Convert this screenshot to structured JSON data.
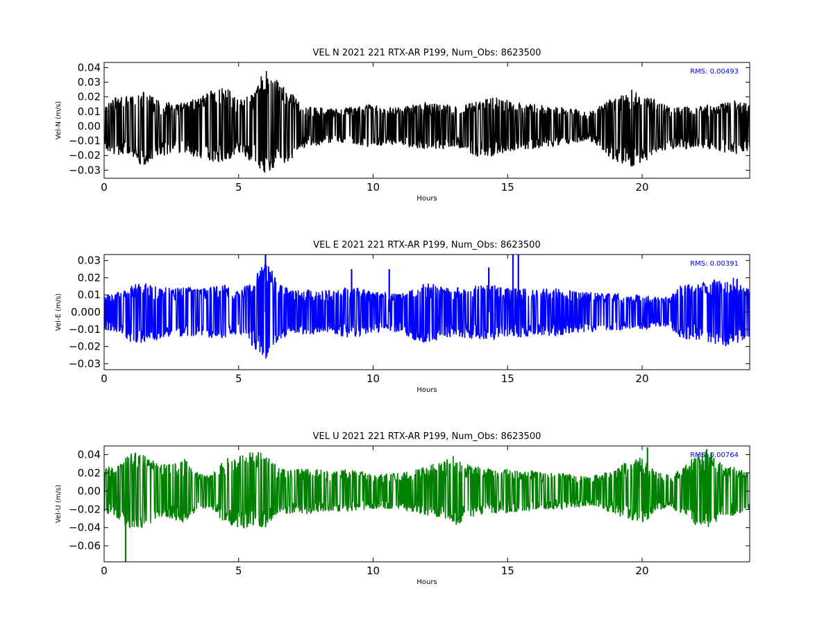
{
  "chart_data": [
    {
      "type": "line",
      "title": "VEL N 2021 221 RTX-AR  P199, Num_Obs: 8623500",
      "xlabel": "Hours",
      "ylabel": "Vel-N (m/s)",
      "xlim": [
        0,
        24
      ],
      "ylim": [
        -0.0355,
        0.0435
      ],
      "xticks": [
        0,
        5,
        10,
        15,
        20
      ],
      "xtick_labels": [
        "0",
        "5",
        "10",
        "15",
        "20"
      ],
      "yticks": [
        -0.03,
        -0.02,
        -0.01,
        0.0,
        0.01,
        0.02,
        0.03,
        0.04
      ],
      "ytick_labels": [
        "−0.03",
        "−0.02",
        "−0.01",
        "0.00",
        "0.01",
        "0.02",
        "0.03",
        "0.04"
      ],
      "color": "#000000",
      "annotation": "RMS:  0.00493",
      "annotation_color": "#0000ff",
      "series": [
        {
          "values_note_x": "hours",
          "x": [
            0,
            0.5,
            1,
            1.5,
            2,
            2.5,
            3,
            3.5,
            4,
            4.5,
            5,
            5.5,
            6,
            6.5,
            7,
            7.5,
            8,
            8.5,
            9,
            9.5,
            10,
            10.5,
            11,
            11.5,
            12,
            12.5,
            13,
            13.5,
            14,
            14.5,
            15,
            15.5,
            16,
            16.5,
            17,
            17.5,
            18,
            18.5,
            19,
            19.5,
            20,
            20.5,
            21,
            21.5,
            22,
            22.5,
            23,
            23.5,
            24
          ],
          "upper": [
            0.016,
            0.02,
            0.02,
            0.025,
            0.018,
            0.016,
            0.016,
            0.02,
            0.024,
            0.028,
            0.018,
            0.022,
            0.04,
            0.03,
            0.022,
            0.014,
            0.013,
            0.012,
            0.013,
            0.014,
            0.015,
            0.013,
            0.013,
            0.015,
            0.016,
            0.015,
            0.014,
            0.016,
            0.018,
            0.02,
            0.018,
            0.016,
            0.016,
            0.014,
            0.013,
            0.012,
            0.009,
            0.016,
            0.02,
            0.026,
            0.022,
            0.018,
            0.014,
            0.014,
            0.013,
            0.015,
            0.016,
            0.018,
            0.015
          ],
          "lower": [
            -0.016,
            -0.02,
            -0.022,
            -0.028,
            -0.022,
            -0.018,
            -0.018,
            -0.022,
            -0.024,
            -0.025,
            -0.018,
            -0.024,
            -0.034,
            -0.028,
            -0.022,
            -0.014,
            -0.013,
            -0.012,
            -0.013,
            -0.014,
            -0.015,
            -0.013,
            -0.013,
            -0.015,
            -0.016,
            -0.016,
            -0.014,
            -0.018,
            -0.022,
            -0.02,
            -0.018,
            -0.016,
            -0.016,
            -0.014,
            -0.013,
            -0.012,
            -0.009,
            -0.016,
            -0.026,
            -0.028,
            -0.026,
            -0.02,
            -0.015,
            -0.016,
            -0.014,
            -0.016,
            -0.018,
            -0.02,
            -0.016
          ]
        }
      ]
    },
    {
      "type": "line",
      "title": "VEL E 2021 221 RTX-AR  P199, Num_Obs: 8623500",
      "xlabel": "Hours",
      "ylabel": "Vel-E (m/s)",
      "xlim": [
        0,
        24
      ],
      "ylim": [
        -0.0335,
        0.0335
      ],
      "xticks": [
        0,
        5,
        10,
        15,
        20
      ],
      "xtick_labels": [
        "0",
        "5",
        "10",
        "15",
        "20"
      ],
      "yticks": [
        -0.03,
        -0.02,
        -0.01,
        0.0,
        0.01,
        0.02,
        0.03
      ],
      "ytick_labels": [
        "−0.03",
        "−0.02",
        "−0.01",
        "0.000",
        "0.01",
        "0.02",
        "0.03"
      ],
      "color": "#0000ff",
      "annotation": "RMS:  0.00391",
      "annotation_color": "#0000ff",
      "series": [
        {
          "x": [
            0,
            0.5,
            1,
            1.5,
            2,
            2.5,
            3,
            3.5,
            4,
            4.5,
            5,
            5.5,
            6,
            6.5,
            7,
            7.5,
            8,
            8.5,
            9,
            9.5,
            10,
            10.5,
            11,
            11.5,
            12,
            12.5,
            13,
            13.5,
            14,
            14.5,
            15,
            15.5,
            16,
            16.5,
            17,
            17.5,
            18,
            18.5,
            19,
            19.5,
            20,
            20.5,
            21,
            21.5,
            22,
            22.5,
            23,
            23.5,
            24
          ],
          "upper": [
            0.01,
            0.012,
            0.016,
            0.017,
            0.015,
            0.014,
            0.015,
            0.014,
            0.015,
            0.016,
            0.012,
            0.018,
            0.03,
            0.018,
            0.013,
            0.013,
            0.013,
            0.013,
            0.015,
            0.014,
            0.012,
            0.011,
            0.011,
            0.014,
            0.018,
            0.015,
            0.014,
            0.016,
            0.016,
            0.016,
            0.014,
            0.014,
            0.013,
            0.014,
            0.014,
            0.012,
            0.012,
            0.011,
            0.011,
            0.01,
            0.01,
            0.009,
            0.009,
            0.016,
            0.016,
            0.018,
            0.02,
            0.02,
            0.014
          ],
          "lower": [
            -0.01,
            -0.012,
            -0.018,
            -0.018,
            -0.016,
            -0.014,
            -0.014,
            -0.014,
            -0.015,
            -0.015,
            -0.012,
            -0.02,
            -0.028,
            -0.016,
            -0.013,
            -0.013,
            -0.013,
            -0.013,
            -0.015,
            -0.014,
            -0.012,
            -0.011,
            -0.012,
            -0.016,
            -0.018,
            -0.016,
            -0.014,
            -0.016,
            -0.016,
            -0.016,
            -0.014,
            -0.015,
            -0.013,
            -0.014,
            -0.014,
            -0.012,
            -0.012,
            -0.011,
            -0.011,
            -0.01,
            -0.01,
            -0.009,
            -0.009,
            -0.016,
            -0.016,
            -0.018,
            -0.02,
            -0.02,
            -0.014
          ],
          "spikes": [
            {
              "x": 6.0,
              "y": 0.0335
            },
            {
              "x": 9.2,
              "y": 0.025
            },
            {
              "x": 10.6,
              "y": 0.025
            },
            {
              "x": 14.3,
              "y": 0.026
            },
            {
              "x": 15.2,
              "y": 0.0335
            },
            {
              "x": 15.4,
              "y": 0.0335
            }
          ]
        }
      ]
    },
    {
      "type": "line",
      "title": "VEL U 2021 221 RTX-AR  P199, Num_Obs: 8623500",
      "xlabel": "Hours",
      "ylabel": "Vel-U (m/s)",
      "xlim": [
        0,
        24
      ],
      "ylim": [
        -0.0775,
        0.0495
      ],
      "xticks": [
        0,
        5,
        10,
        15,
        20
      ],
      "xtick_labels": [
        "0",
        "5",
        "10",
        "15",
        "20"
      ],
      "yticks": [
        -0.06,
        -0.04,
        -0.02,
        0.0,
        0.02,
        0.04
      ],
      "ytick_labels": [
        "−0.06",
        "−0.04",
        "−0.02",
        "0.00",
        "0.02",
        "0.04"
      ],
      "color": "#008000",
      "annotation": "RMS:  0.00764",
      "annotation_color": "#0000ff",
      "series": [
        {
          "x": [
            0,
            0.5,
            1,
            1.5,
            2,
            2.5,
            3,
            3.5,
            4,
            4.5,
            5,
            5.5,
            6,
            6.5,
            7,
            7.5,
            8,
            8.5,
            9,
            9.5,
            10,
            10.5,
            11,
            11.5,
            12,
            12.5,
            13,
            13.5,
            14,
            14.5,
            15,
            15.5,
            16,
            16.5,
            17,
            17.5,
            18,
            18.5,
            19,
            19.5,
            20,
            20.5,
            21,
            21.5,
            22,
            22.5,
            23,
            23.5,
            24
          ],
          "upper": [
            0.025,
            0.03,
            0.046,
            0.04,
            0.03,
            0.03,
            0.036,
            0.02,
            0.018,
            0.036,
            0.04,
            0.045,
            0.042,
            0.026,
            0.025,
            0.026,
            0.024,
            0.022,
            0.024,
            0.022,
            0.02,
            0.02,
            0.02,
            0.025,
            0.028,
            0.032,
            0.04,
            0.03,
            0.026,
            0.024,
            0.025,
            0.022,
            0.022,
            0.02,
            0.02,
            0.018,
            0.016,
            0.02,
            0.024,
            0.034,
            0.038,
            0.022,
            0.018,
            0.025,
            0.04,
            0.045,
            0.03,
            0.026,
            0.02
          ],
          "lower": [
            -0.025,
            -0.03,
            -0.045,
            -0.04,
            -0.03,
            -0.03,
            -0.034,
            -0.02,
            -0.02,
            -0.036,
            -0.04,
            -0.042,
            -0.04,
            -0.024,
            -0.025,
            -0.026,
            -0.024,
            -0.022,
            -0.024,
            -0.022,
            -0.02,
            -0.02,
            -0.02,
            -0.024,
            -0.028,
            -0.032,
            -0.04,
            -0.03,
            -0.026,
            -0.024,
            -0.025,
            -0.022,
            -0.022,
            -0.02,
            -0.02,
            -0.018,
            -0.016,
            -0.02,
            -0.026,
            -0.034,
            -0.04,
            -0.022,
            -0.018,
            -0.026,
            -0.038,
            -0.042,
            -0.03,
            -0.026,
            -0.02
          ],
          "spikes": [
            {
              "x": 0.8,
              "y": -0.0775
            },
            {
              "x": 20.2,
              "y": 0.048
            },
            {
              "x": 22.4,
              "y": 0.046
            }
          ]
        }
      ]
    }
  ]
}
